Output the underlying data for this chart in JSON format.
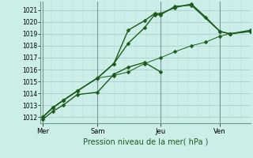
{
  "title": "Pression niveau de la mer( hPa )",
  "ylabel_vals": [
    1012,
    1013,
    1014,
    1015,
    1016,
    1017,
    1018,
    1019,
    1020,
    1021
  ],
  "ylim": [
    1011.5,
    1021.7
  ],
  "xlim": [
    -0.1,
    10.2
  ],
  "day_ticks": [
    {
      "x": 0.0,
      "label": "Mer"
    },
    {
      "x": 2.7,
      "label": "Sam"
    },
    {
      "x": 5.8,
      "label": "Jeu"
    },
    {
      "x": 8.7,
      "label": "Ven"
    }
  ],
  "day_lines": [
    0.0,
    2.7,
    5.8,
    8.7
  ],
  "background_color": "#cceee8",
  "grid_color_major": "#aacccc",
  "grid_color_minor": "#c4e0dc",
  "line_color": "#1a5c1a",
  "marker": "D",
  "markersize": 2.5,
  "series": [
    {
      "x": [
        0.0,
        0.5,
        1.0,
        1.7,
        2.7,
        3.5,
        4.2,
        5.0,
        5.8
      ],
      "y": [
        1011.8,
        1012.5,
        1013.0,
        1013.9,
        1014.1,
        1015.6,
        1016.2,
        1016.6,
        1015.8
      ]
    },
    {
      "x": [
        0.0,
        0.5,
        1.0,
        1.7,
        2.7,
        3.5,
        4.2,
        5.0,
        5.5,
        5.8,
        6.5,
        7.3,
        8.7,
        9.2,
        10.2
      ],
      "y": [
        1012.0,
        1012.8,
        1013.4,
        1014.2,
        1015.3,
        1016.5,
        1018.2,
        1019.5,
        1020.6,
        1020.6,
        1021.3,
        1021.4,
        1019.2,
        1019.0,
        1019.2
      ]
    },
    {
      "x": [
        0.0,
        0.5,
        1.0,
        1.7,
        2.7,
        3.5,
        4.2,
        5.0,
        5.5,
        5.8,
        6.5,
        7.3,
        8.0,
        8.7,
        9.2,
        10.2
      ],
      "y": [
        1012.0,
        1012.8,
        1013.4,
        1014.2,
        1015.3,
        1016.5,
        1019.3,
        1020.1,
        1020.7,
        1020.7,
        1021.2,
        1021.5,
        1020.4,
        1019.2,
        1019.0,
        1019.3
      ]
    },
    {
      "x": [
        0.0,
        0.5,
        1.0,
        1.7,
        2.7,
        3.5,
        4.2,
        5.0,
        5.8,
        6.5,
        7.3,
        8.0,
        8.7,
        9.2,
        10.2
      ],
      "y": [
        1012.0,
        1012.8,
        1013.4,
        1014.2,
        1015.3,
        1015.5,
        1015.8,
        1016.5,
        1017.0,
        1017.5,
        1018.0,
        1018.3,
        1018.8,
        1019.0,
        1019.2
      ]
    }
  ],
  "linewidths": [
    1.0,
    1.0,
    1.0,
    0.7
  ]
}
